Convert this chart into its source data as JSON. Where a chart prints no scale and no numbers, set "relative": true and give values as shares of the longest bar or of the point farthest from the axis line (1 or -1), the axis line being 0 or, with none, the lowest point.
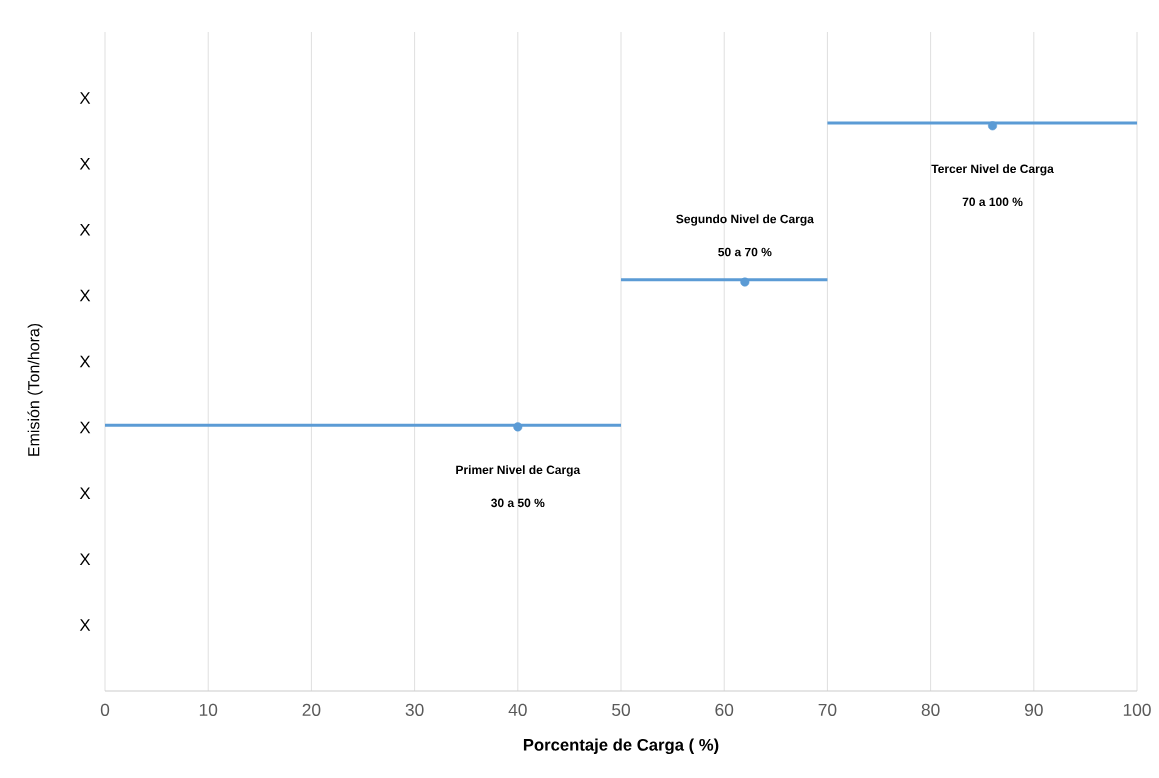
{
  "chart_data": {
    "type": "line",
    "xlabel": "Porcentaje de Carga ( %)",
    "ylabel": "Emisión   (Ton/hora)",
    "relative": true,
    "xlim": [
      0,
      100
    ],
    "xticks": [
      0,
      10,
      20,
      30,
      40,
      50,
      60,
      70,
      80,
      90,
      100
    ],
    "grid": true,
    "line_style": "solid",
    "series": [
      {
        "color": "#5b9bd5",
        "x": [
          0,
          50
        ],
        "values": [
          0.468,
          0.468
        ],
        "marker": "none"
      },
      {
        "color": "#5b9bd5",
        "x": [
          50,
          70
        ],
        "values": [
          0.724,
          0.724
        ],
        "marker": "none"
      },
      {
        "color": "#5b9bd5",
        "x": [
          70,
          100
        ],
        "values": [
          1,
          1
        ],
        "marker": "none"
      },
      {
        "type": "scatter",
        "color": "#5b9bd5",
        "x": [
          40,
          62,
          86
        ],
        "values": [
          0.465,
          0.72,
          0.995
        ],
        "marker": "circle"
      }
    ],
    "annotations": [
      "Primer Nivel de Carga",
      "30 a 50 %",
      "Segundo Nivel de Carga",
      "50 a 70 %",
      "Tercer Nivel de Carga",
      "70 a 100 %",
      "X",
      "X",
      "X",
      "X",
      "X",
      "X",
      "X",
      "X",
      "X"
    ]
  }
}
